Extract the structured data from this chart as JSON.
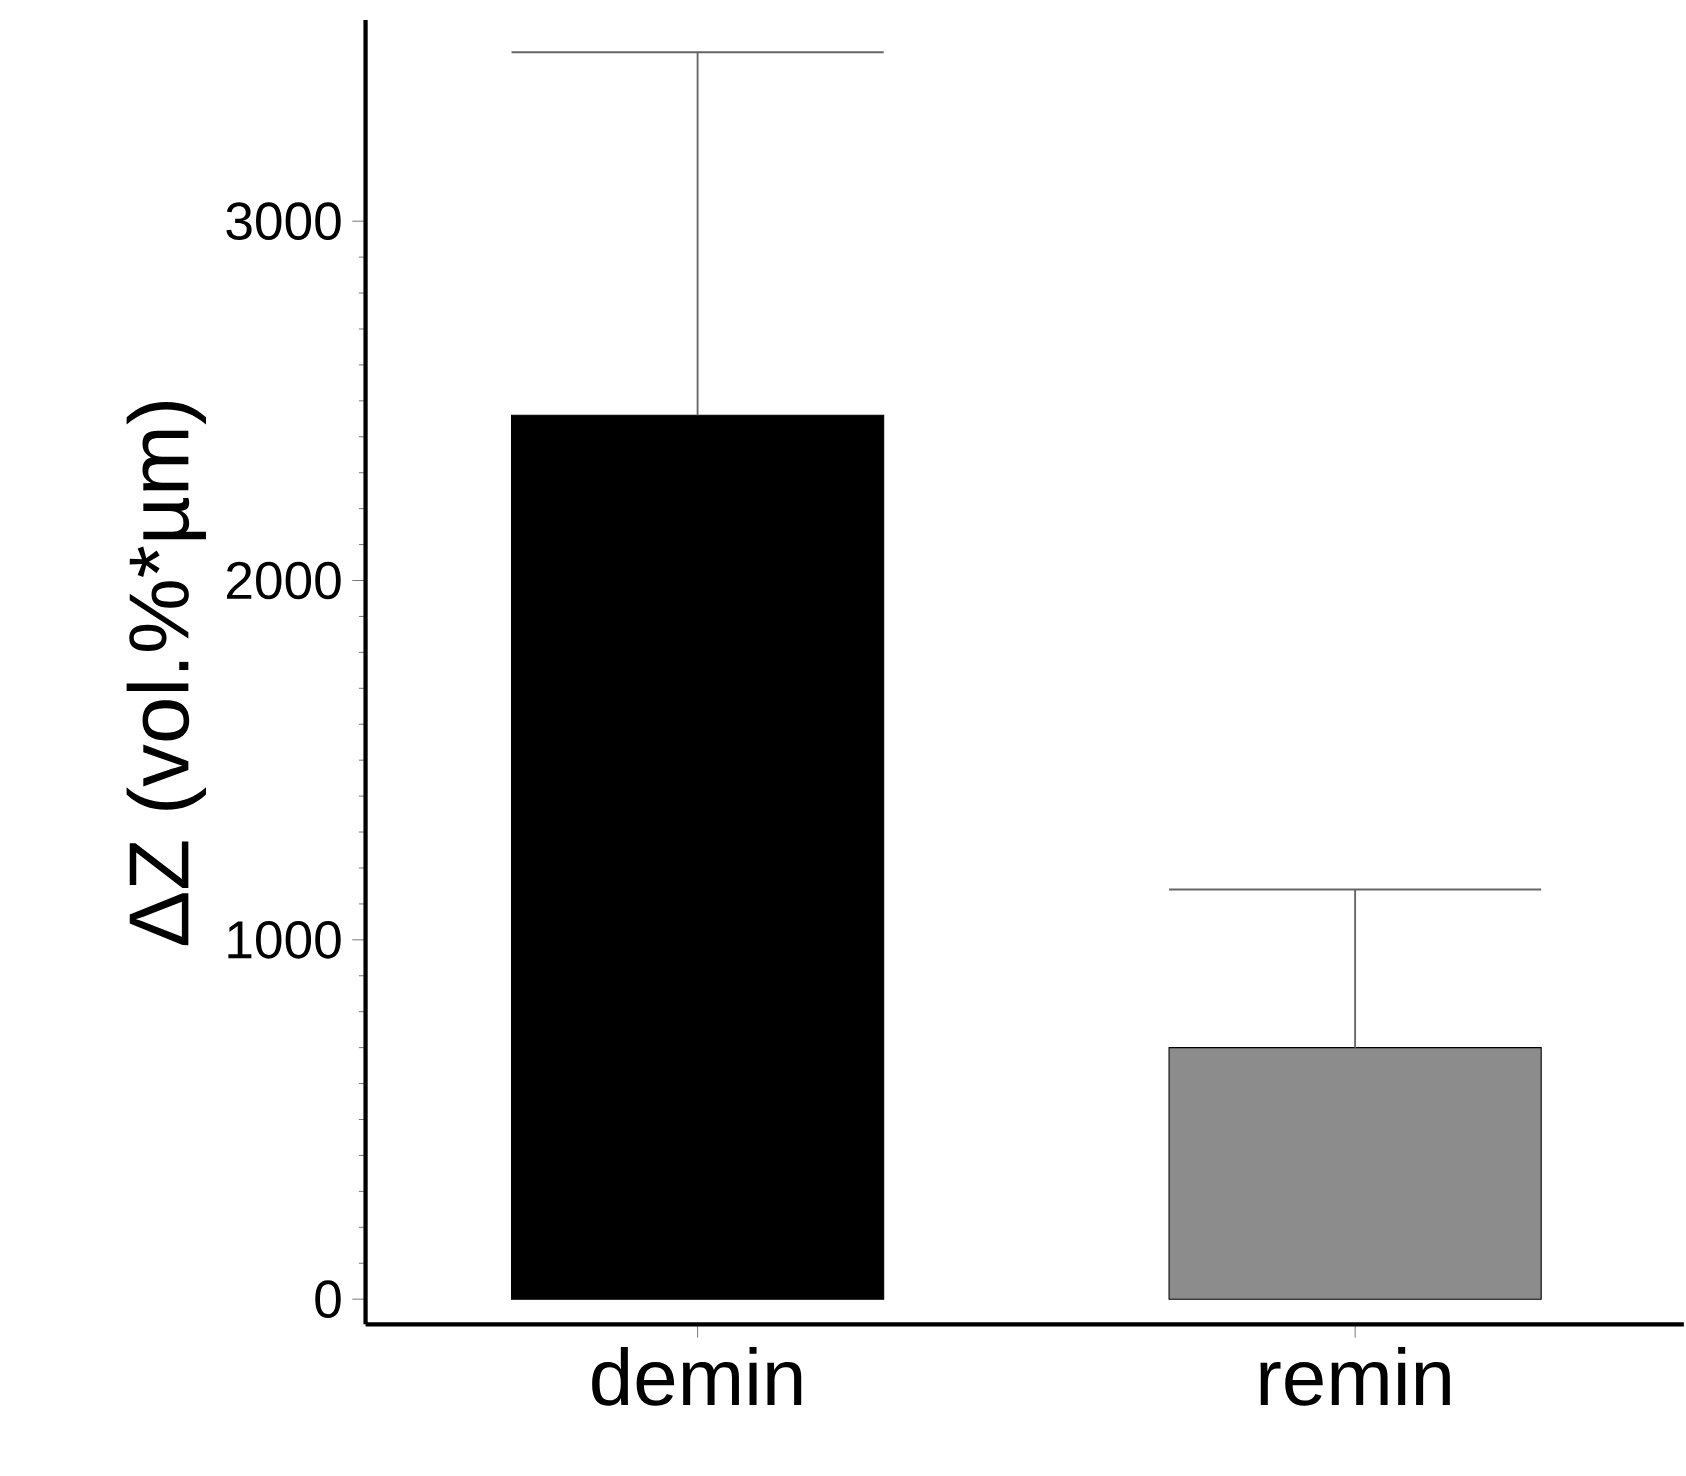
{
  "chart_data": {
    "type": "bar",
    "ylabel": "ΔZ (vol.%*µm)",
    "categories": [
      "demin",
      "remin"
    ],
    "values": [
      2460,
      700
    ],
    "colors": [
      "#000000",
      "#8c8c8c"
    ],
    "errors": [
      [
        2460,
        3470
      ],
      [
        700,
        1140
      ]
    ],
    "ylim": [
      -70,
      3560
    ],
    "yticks": [
      0,
      1000,
      2000,
      3000
    ]
  }
}
